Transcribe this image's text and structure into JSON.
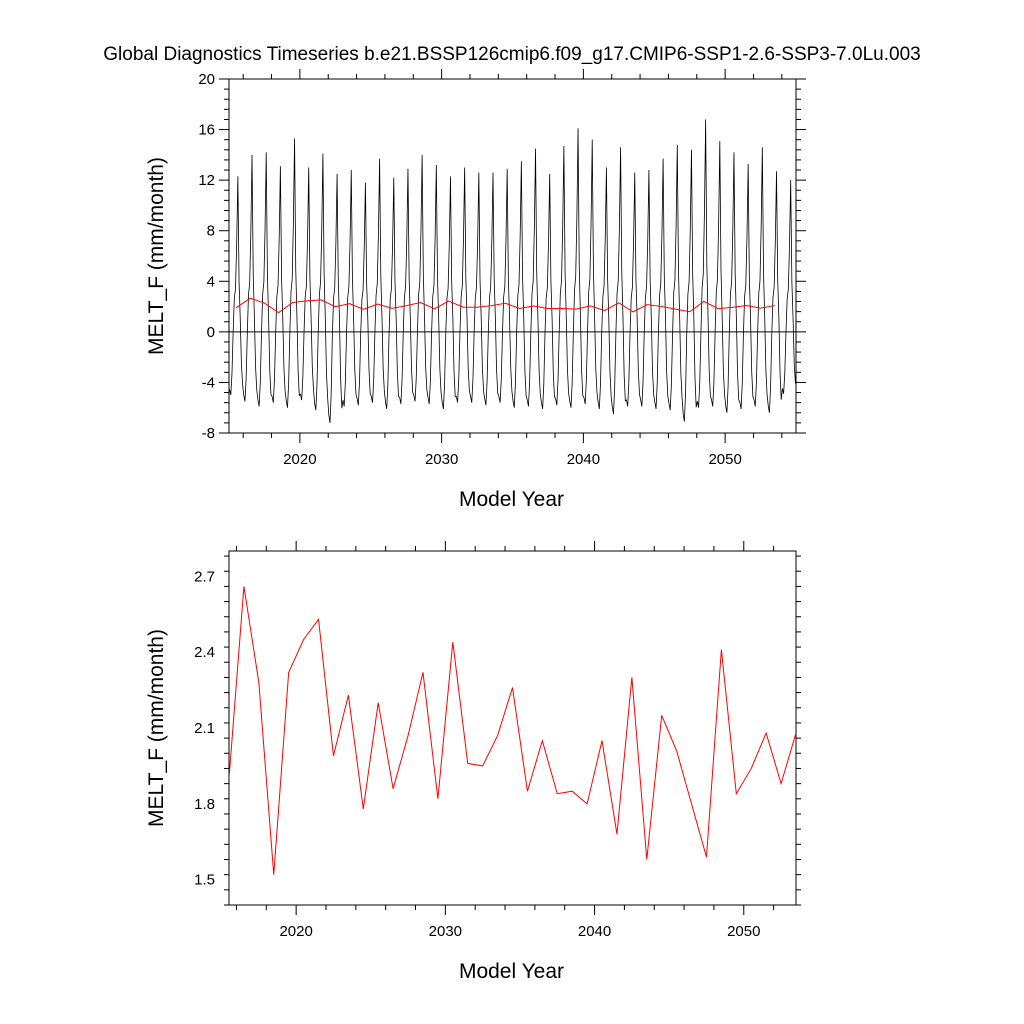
{
  "title": "Global Diagnostics Timeseries b.e21.BSSP126cmip6.f09_g17.CMIP6-SSP1-2.6-SSP3-7.0Lu.003",
  "chart_data": [
    {
      "type": "line",
      "xlabel": "Model Year",
      "ylabel": "MELT_F (mm/month)",
      "xlim": [
        2015,
        2055
      ],
      "ylim": [
        -8,
        20
      ],
      "xticks": [
        2020,
        2030,
        2040,
        2050
      ],
      "yticks": [
        -8,
        -4,
        0,
        4,
        8,
        12,
        16,
        20
      ],
      "zero_line": true,
      "monthly_series": {
        "name": "",
        "color": "#000000",
        "start_year": 2015,
        "samples_per_year": 12,
        "yearly_peaks": [
          12.3,
          14.0,
          14.2,
          13.1,
          15.3,
          13.0,
          14.1,
          12.5,
          12.8,
          11.8,
          13.7,
          12.2,
          12.9,
          14.0,
          13.2,
          12.3,
          13.0,
          12.6,
          12.6,
          12.9,
          13.5,
          14.5,
          12.5,
          14.7,
          16.1,
          15.2,
          13.0,
          14.6,
          12.6,
          12.8,
          13.7,
          14.8,
          14.4,
          16.8,
          15.1,
          14.2,
          13.3,
          14.6,
          12.7,
          12.0
        ],
        "yearly_troughs": [
          -5.0,
          -5.5,
          -5.9,
          -5.6,
          -6.0,
          -5.4,
          -6.2,
          -7.2,
          -5.9,
          -5.8,
          -5.6,
          -6.1,
          -5.7,
          -5.5,
          -5.7,
          -6.1,
          -5.6,
          -5.6,
          -5.8,
          -5.6,
          -6.0,
          -5.9,
          -6.1,
          -5.8,
          -6.0,
          -5.7,
          -6.1,
          -6.5,
          -5.9,
          -5.9,
          -6.1,
          -6.2,
          -7.1,
          -6.0,
          -5.9,
          -6.4,
          -6.1,
          -5.9,
          -6.4,
          -4.9
        ]
      },
      "annual_series": {
        "name": "",
        "color": "#ff0000",
        "x": [
          2015.5,
          2016.5,
          2017.5,
          2018.5,
          2019.5,
          2020.5,
          2021.5,
          2022.5,
          2023.5,
          2024.5,
          2025.5,
          2026.5,
          2027.5,
          2028.5,
          2029.5,
          2030.5,
          2031.5,
          2032.5,
          2033.5,
          2034.5,
          2035.5,
          2036.5,
          2037.5,
          2038.5,
          2039.5,
          2040.5,
          2041.5,
          2042.5,
          2043.5,
          2044.5,
          2045.5,
          2046.5,
          2047.5,
          2048.5,
          2049.5,
          2050.5,
          2051.5,
          2052.5,
          2053.5
        ],
        "values": [
          1.9,
          2.66,
          2.28,
          1.52,
          2.32,
          2.45,
          2.53,
          1.99,
          2.23,
          1.78,
          2.2,
          1.86,
          2.07,
          2.32,
          1.82,
          2.44,
          1.96,
          1.95,
          2.07,
          2.26,
          1.85,
          2.05,
          1.84,
          1.85,
          1.8,
          2.05,
          1.68,
          2.3,
          1.58,
          2.15,
          2.01,
          1.8,
          1.59,
          2.41,
          1.84,
          1.94,
          2.08,
          1.88,
          2.08
        ]
      }
    },
    {
      "type": "line",
      "xlabel": "Model Year",
      "ylabel": "MELT_F (mm/month)",
      "xlim": [
        2015.5,
        2053.5
      ],
      "ylim": [
        1.4,
        2.8
      ],
      "xticks": [
        2020,
        2030,
        2040,
        2050
      ],
      "yticks": [
        1.5,
        1.8,
        2.1,
        2.4,
        2.7
      ],
      "series": [
        {
          "name": "",
          "color": "#ff0000",
          "x": [
            2015.5,
            2016.5,
            2017.5,
            2018.5,
            2019.5,
            2020.5,
            2021.5,
            2022.5,
            2023.5,
            2024.5,
            2025.5,
            2026.5,
            2027.5,
            2028.5,
            2029.5,
            2030.5,
            2031.5,
            2032.5,
            2033.5,
            2034.5,
            2035.5,
            2036.5,
            2037.5,
            2038.5,
            2039.5,
            2040.5,
            2041.5,
            2042.5,
            2043.5,
            2044.5,
            2045.5,
            2046.5,
            2047.5,
            2048.5,
            2049.5,
            2050.5,
            2051.5,
            2052.5,
            2053.5
          ],
          "values": [
            1.9,
            2.66,
            2.28,
            1.52,
            2.32,
            2.45,
            2.53,
            1.99,
            2.23,
            1.78,
            2.2,
            1.86,
            2.07,
            2.32,
            1.82,
            2.44,
            1.96,
            1.95,
            2.07,
            2.26,
            1.85,
            2.05,
            1.84,
            1.85,
            1.8,
            2.05,
            1.68,
            2.3,
            1.58,
            2.15,
            2.01,
            1.8,
            1.59,
            2.41,
            1.84,
            1.94,
            2.08,
            1.88,
            2.08
          ]
        }
      ]
    }
  ]
}
